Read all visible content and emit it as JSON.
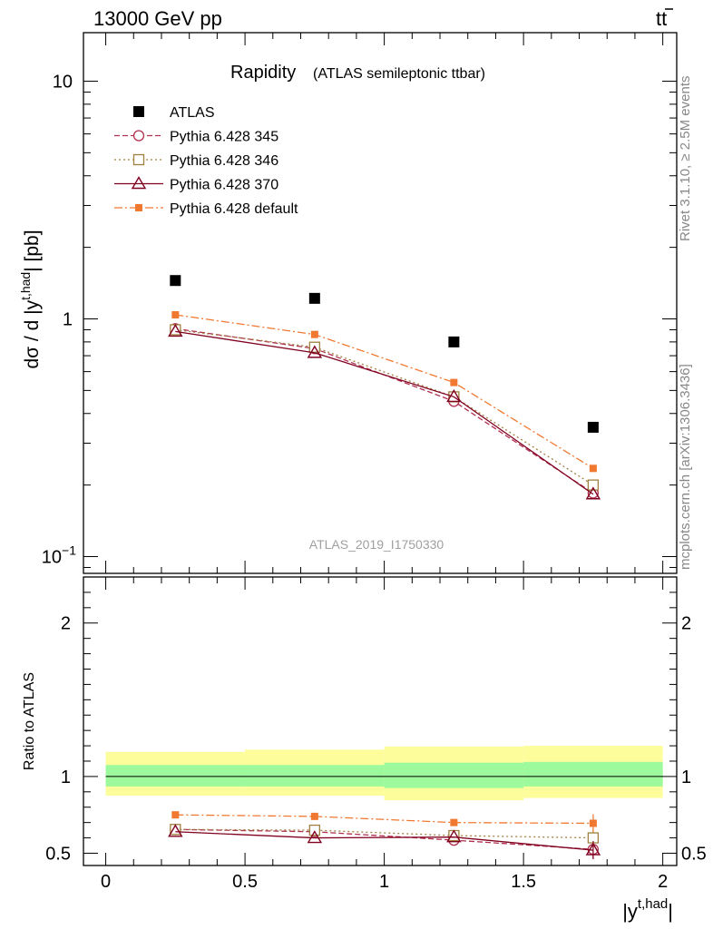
{
  "header": {
    "left": "13000 GeV pp",
    "right_main": "tt",
    "right_bar": "t"
  },
  "side_labels": {
    "rivet": "Rivet 3.1.10, ≥ 2.5M events",
    "mcplots": "mcplots.cern.ch [arXiv:1306.3436]"
  },
  "chart_data": [
    {
      "type": "scatter",
      "title": "Rapidity",
      "subtitle": "(ATLAS semileptonic ttbar)",
      "watermark": "ATLAS_2019_I1750330",
      "ylabel": {
        "main": "dσ / d |y",
        "sup": "t,had",
        "tail": "| [pb]"
      },
      "yscale": "log",
      "ylim": [
        0.085,
        16
      ],
      "y_ticks": [
        {
          "v": 0.1,
          "base": "10",
          "exp": "−1"
        },
        {
          "v": 1,
          "label": "1"
        },
        {
          "v": 10,
          "label": "10"
        }
      ],
      "x": [
        0.25,
        0.75,
        1.25,
        1.75
      ],
      "bin_edges": [
        0,
        0.5,
        1,
        1.5,
        2
      ],
      "xlim": [
        -0.08,
        2.05
      ],
      "legend_position": "top-left",
      "series": [
        {
          "name": "ATLAS",
          "values": [
            1.45,
            1.22,
            0.8,
            0.35
          ],
          "color": "#000000",
          "marker": "square-filled",
          "line": "none"
        },
        {
          "name": "Pythia 6.428 345",
          "values": [
            0.91,
            0.75,
            0.45,
            0.185
          ],
          "color": "#b03050",
          "marker": "circle-open",
          "line": "dashed"
        },
        {
          "name": "Pythia 6.428 346",
          "values": [
            0.9,
            0.76,
            0.47,
            0.2
          ],
          "color": "#a08040",
          "marker": "square-open",
          "line": "dotted"
        },
        {
          "name": "Pythia 6.428 370",
          "values": [
            0.885,
            0.72,
            0.47,
            0.183
          ],
          "color": "#800020",
          "marker": "triangle-open",
          "line": "solid"
        },
        {
          "name": "Pythia 6.428 default",
          "values": [
            1.04,
            0.86,
            0.54,
            0.235
          ],
          "color": "#f07830",
          "marker": "square-filled-small",
          "line": "dashdot"
        }
      ]
    },
    {
      "type": "scatter",
      "ylabel": "Ratio to ATLAS",
      "xlabel": {
        "main": "|y",
        "sup": "t,had",
        "tail": "|"
      },
      "ylim": [
        0.42,
        2.3
      ],
      "y_ticks": [
        {
          "v": 0.5,
          "label": "0.5"
        },
        {
          "v": 1,
          "label": "1"
        },
        {
          "v": 2,
          "label": "2"
        }
      ],
      "x_ticks": [
        {
          "v": 0,
          "label": "0"
        },
        {
          "v": 0.5,
          "label": "0.5"
        },
        {
          "v": 1,
          "label": "1"
        },
        {
          "v": 1.5,
          "label": "1.5"
        },
        {
          "v": 2,
          "label": "2"
        }
      ],
      "x": [
        0.25,
        0.75,
        1.25,
        1.75
      ],
      "bands": {
        "inner": {
          "color": "#9cf99c",
          "lo": [
            0.935,
            0.935,
            0.925,
            0.935
          ],
          "hi": [
            1.075,
            1.075,
            1.09,
            1.095
          ]
        },
        "outer": {
          "color": "#fdfd9c",
          "lo": [
            0.875,
            0.875,
            0.845,
            0.86
          ],
          "hi": [
            1.16,
            1.175,
            1.195,
            1.2
          ]
        }
      },
      "series": [
        {
          "name": "Pythia 6.428 345",
          "values": [
            0.655,
            0.64,
            0.585,
            0.525
          ],
          "color": "#b03050"
        },
        {
          "name": "Pythia 6.428 346",
          "values": [
            0.655,
            0.65,
            0.615,
            0.6
          ],
          "color": "#a08040"
        },
        {
          "name": "Pythia 6.428 370",
          "values": [
            0.64,
            0.6,
            0.605,
            0.52
          ],
          "color": "#800020"
        },
        {
          "name": "Pythia 6.428 default",
          "values": [
            0.75,
            0.74,
            0.7,
            0.695
          ],
          "color": "#f07830"
        }
      ]
    }
  ]
}
